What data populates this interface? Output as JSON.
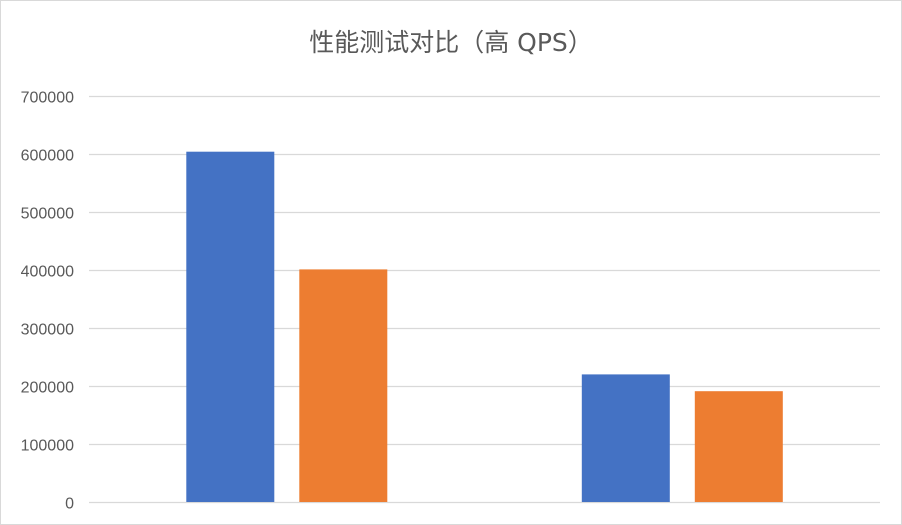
{
  "chart_data": {
    "type": "bar",
    "title": "性能测试对比（高 QPS）",
    "xlabel": "",
    "ylabel": "",
    "categories": [
      "",
      ""
    ],
    "series": [
      {
        "values": [
          604000,
          220000
        ],
        "color": "#4472C4"
      },
      {
        "values": [
          401000,
          191000
        ],
        "color": "#ED7D31"
      }
    ],
    "ylim": [
      0,
      700000
    ],
    "yticks": [
      "0",
      "100000",
      "200000",
      "300000",
      "400000",
      "500000",
      "600000",
      "700000"
    ],
    "grid": true,
    "legend": "none"
  }
}
